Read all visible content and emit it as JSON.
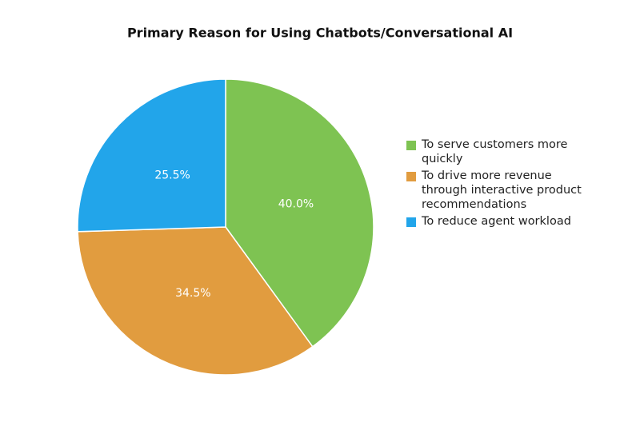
{
  "chart_data": {
    "type": "pie",
    "title": "Primary Reason for Using Chatbots/Conversational AI",
    "categories": [
      "To serve customers more quickly",
      "To drive more revenue through interactive product recommendations",
      "To reduce agent workload"
    ],
    "values": [
      40.0,
      34.5,
      25.5
    ],
    "value_labels": [
      "40.0%",
      "34.5%",
      "25.5%"
    ],
    "colors": [
      "#7ec352",
      "#e19c3f",
      "#22a5ea"
    ],
    "legend": "right"
  }
}
